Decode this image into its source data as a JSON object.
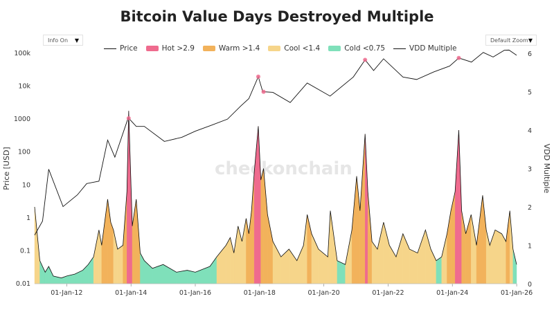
{
  "title": "Bitcoin Value Days Destroyed Multiple",
  "controls": {
    "info": "Info On",
    "zoom": "Default Zoom"
  },
  "watermark": "checkonchain",
  "colors": {
    "hot": "#ef6b8e",
    "warm": "#f2b25b",
    "cool": "#f6d58a",
    "cold": "#7fe0ba",
    "price": "#111111",
    "vdd": "#111111"
  },
  "legend": [
    {
      "key": "price",
      "label": "Price",
      "kind": "line"
    },
    {
      "key": "hot",
      "label": "Hot >2.9",
      "kind": "swatch"
    },
    {
      "key": "warm",
      "label": "Warm >1.4",
      "kind": "swatch"
    },
    {
      "key": "cool",
      "label": "Cool <1.4",
      "kind": "swatch"
    },
    {
      "key": "cold",
      "label": "Cold <0.75",
      "kind": "swatch"
    },
    {
      "key": "vdd",
      "label": "VDD Multiple",
      "kind": "line"
    }
  ],
  "chart_data": {
    "type": "area",
    "title": "Bitcoin Value Days Destroyed Multiple",
    "x_range": [
      "2011-01-01",
      "2025-12-31"
    ],
    "x_ticks": [
      "01-Jan-12",
      "01-Jan-14",
      "01-Jan-16",
      "01-Jan-18",
      "01-Jan-20",
      "01-Jan-22",
      "01-Jan-24",
      "01-Jan-26"
    ],
    "y_left": {
      "label": "Price [USD]",
      "scale": "log",
      "range": [
        0.01,
        100000
      ],
      "ticks": [
        "100k",
        "10k",
        "1000",
        "100",
        "10",
        "1",
        "0.1",
        "0.01"
      ]
    },
    "y_right": {
      "label": "VDD Multiple",
      "scale": "linear",
      "range": [
        0,
        6
      ],
      "ticks": [
        "6",
        "5",
        "4",
        "3",
        "2",
        "1",
        "0"
      ]
    },
    "thresholds": {
      "hot": 2.9,
      "warm": 1.4,
      "cold": 0.75
    },
    "series": [
      {
        "name": "Price",
        "axis": "left",
        "x": [
          "2011-01-01",
          "2011-04-01",
          "2011-06-10",
          "2011-11-20",
          "2012-05-01",
          "2012-08-15",
          "2013-01-01",
          "2013-04-10",
          "2013-07-01",
          "2013-11-30",
          "2014-03-01",
          "2014-06-01",
          "2015-01-15",
          "2015-08-01",
          "2016-01-01",
          "2016-07-01",
          "2017-01-01",
          "2017-06-01",
          "2017-09-01",
          "2017-12-17",
          "2018-02-06",
          "2018-06-01",
          "2018-12-15",
          "2019-06-26",
          "2020-03-12",
          "2020-12-01",
          "2021-04-14",
          "2021-07-20",
          "2021-11-10",
          "2022-06-18",
          "2022-11-21",
          "2023-06-01",
          "2023-12-01",
          "2024-03-14",
          "2024-08-05",
          "2024-12-17",
          "2025-04-08",
          "2025-08-14",
          "2025-10-06",
          "2025-12-31"
        ],
        "y": [
          0.3,
          0.8,
          30,
          2.2,
          5,
          11,
          13,
          230,
          70,
          1100,
          600,
          600,
          210,
          280,
          430,
          650,
          1000,
          2500,
          4200,
          19500,
          6800,
          6500,
          3200,
          12500,
          5000,
          19000,
          63000,
          30000,
          68000,
          19000,
          16000,
          27000,
          41000,
          72000,
          54000,
          106000,
          77000,
          124000,
          125000,
          87000
        ]
      },
      {
        "name": "VDD Multiple",
        "axis": "right",
        "x": [
          "2011-01-01",
          "2011-03-01",
          "2011-05-01",
          "2011-06-10",
          "2011-08-01",
          "2011-11-01",
          "2012-01-01",
          "2012-04-01",
          "2012-07-01",
          "2012-09-01",
          "2012-11-01",
          "2013-01-01",
          "2013-02-01",
          "2013-04-10",
          "2013-05-15",
          "2013-06-15",
          "2013-08-01",
          "2013-10-01",
          "2013-11-15",
          "2013-12-05",
          "2014-01-15",
          "2014-03-01",
          "2014-04-15",
          "2014-06-01",
          "2014-09-01",
          "2015-01-01",
          "2015-06-01",
          "2015-10-01",
          "2016-01-01",
          "2016-06-15",
          "2016-09-01",
          "2016-12-15",
          "2017-02-01",
          "2017-03-15",
          "2017-05-01",
          "2017-06-15",
          "2017-08-01",
          "2017-09-01",
          "2017-10-01",
          "2017-11-01",
          "2017-12-17",
          "2018-01-15",
          "2018-02-15",
          "2018-04-01",
          "2018-06-01",
          "2018-09-01",
          "2018-12-01",
          "2019-03-01",
          "2019-05-15",
          "2019-06-26",
          "2019-08-15",
          "2019-11-01",
          "2020-02-15",
          "2020-03-15",
          "2020-06-01",
          "2020-09-01",
          "2020-11-15",
          "2021-01-08",
          "2021-02-15",
          "2021-04-14",
          "2021-05-15",
          "2021-07-01",
          "2021-09-01",
          "2021-11-10",
          "2022-01-15",
          "2022-04-01",
          "2022-06-18",
          "2022-09-01",
          "2022-12-01",
          "2023-03-01",
          "2023-05-01",
          "2023-07-01",
          "2023-09-01",
          "2023-11-01",
          "2023-12-15",
          "2024-02-01",
          "2024-03-14",
          "2024-04-15",
          "2024-06-01",
          "2024-08-01",
          "2024-10-01",
          "2024-12-10",
          "2025-01-20",
          "2025-03-01",
          "2025-05-01",
          "2025-07-15",
          "2025-09-01",
          "2025-10-15",
          "2025-11-20",
          "2025-12-31"
        ],
        "y": [
          2.0,
          0.6,
          0.3,
          0.45,
          0.2,
          0.15,
          0.2,
          0.25,
          0.35,
          0.5,
          0.7,
          1.4,
          1.0,
          2.2,
          1.6,
          1.4,
          0.9,
          1.0,
          2.4,
          4.5,
          1.5,
          2.2,
          0.8,
          0.6,
          0.4,
          0.5,
          0.3,
          0.35,
          0.3,
          0.45,
          0.7,
          1.0,
          1.2,
          0.8,
          1.5,
          1.1,
          1.7,
          1.3,
          1.9,
          2.9,
          4.1,
          2.7,
          3.0,
          1.8,
          1.1,
          0.7,
          0.9,
          0.6,
          1.0,
          1.8,
          1.3,
          0.9,
          0.7,
          1.9,
          0.6,
          0.5,
          1.4,
          2.8,
          1.9,
          3.9,
          2.4,
          1.1,
          0.9,
          1.6,
          1.0,
          0.7,
          1.3,
          0.9,
          0.8,
          1.4,
          0.9,
          0.6,
          0.7,
          1.3,
          1.9,
          2.4,
          4.0,
          1.9,
          1.3,
          1.8,
          1.0,
          2.3,
          1.4,
          1.0,
          1.4,
          1.3,
          1.1,
          1.9,
          0.9,
          0.5
        ]
      }
    ]
  }
}
